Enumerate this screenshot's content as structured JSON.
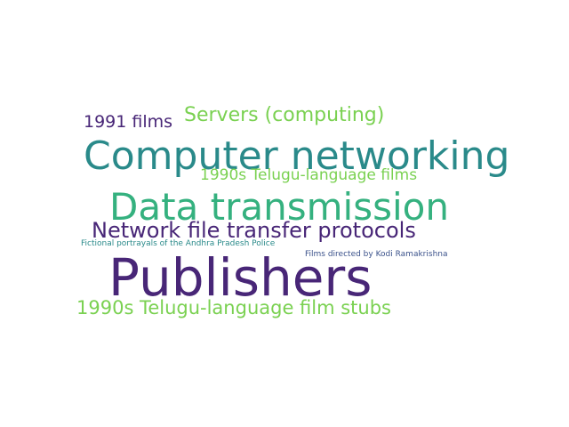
{
  "words": [
    {
      "text": "Publishers",
      "color": "#482677"
    },
    {
      "text": "Computer networking",
      "color": "#2a8a8a"
    },
    {
      "text": "Data transmission",
      "color": "#35b17f"
    },
    {
      "text": "Network file transfer protocols",
      "color": "#482677"
    },
    {
      "text": "Servers (computing)",
      "color": "#7ad151"
    },
    {
      "text": "1990s Telugu-language film stubs",
      "color": "#7ad151"
    },
    {
      "text": "1991 films",
      "color": "#482677"
    },
    {
      "text": "1990s Telugu-language films",
      "color": "#7ad151"
    },
    {
      "text": "Fictional portrayals of the Andhra Pradesh Police",
      "color": "#2a8a8a"
    },
    {
      "text": "Films directed by Kodi Ramakrishna",
      "color": "#3b528b"
    }
  ]
}
